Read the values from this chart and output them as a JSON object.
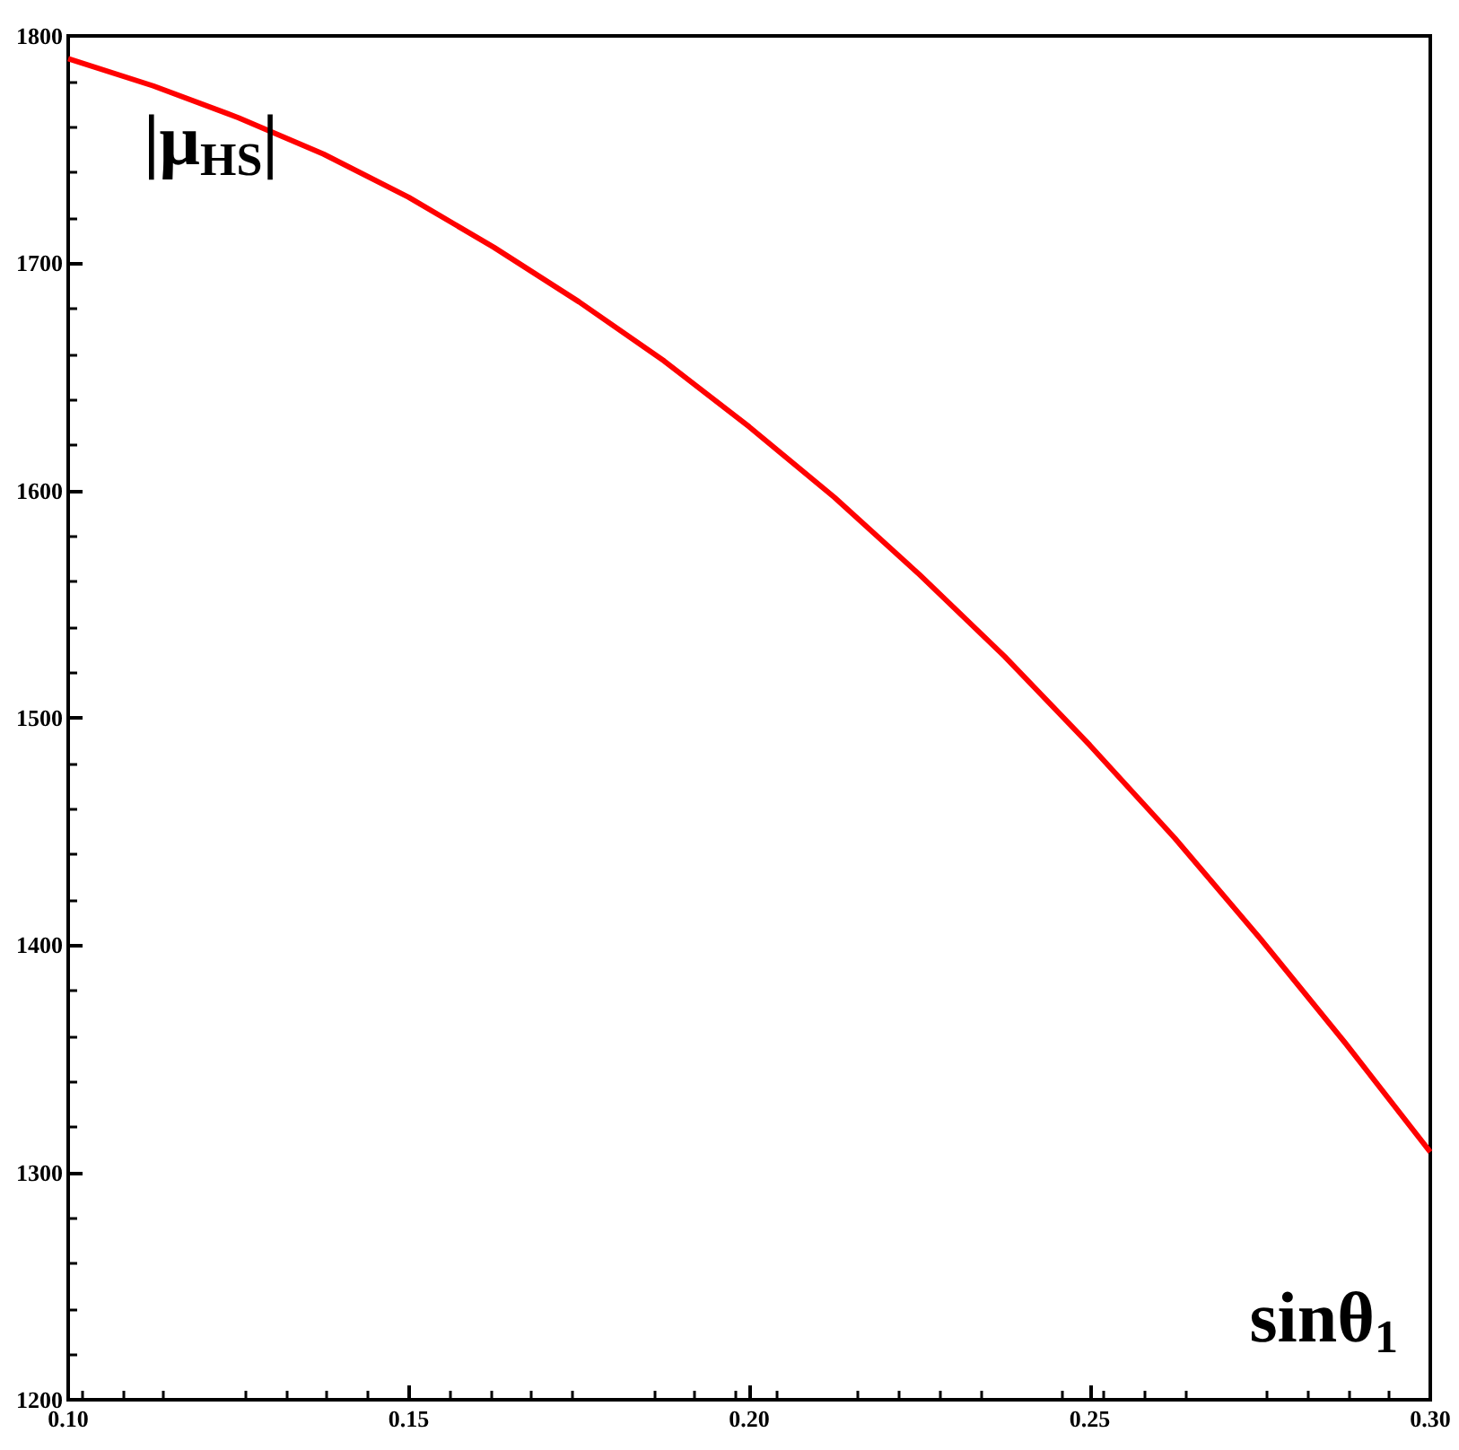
{
  "chart_data": {
    "type": "line",
    "xlabel": "sinθ$_{1}$",
    "ylabel": "|μ$_{HS}$|",
    "x": [
      0.1,
      0.1125,
      0.125,
      0.1375,
      0.15,
      0.1625,
      0.175,
      0.1875,
      0.2,
      0.2125,
      0.225,
      0.2375,
      0.25,
      0.2625,
      0.275,
      0.2875,
      0.3
    ],
    "series": [
      {
        "color": "#ff0000",
        "values": [
          1790,
          1778,
          1764,
          1748,
          1729,
          1707,
          1683,
          1657,
          1628,
          1597,
          1563,
          1527,
          1488,
          1447,
          1403,
          1357,
          1309
        ]
      }
    ],
    "xlim": [
      0.1,
      0.3
    ],
    "xticks": [
      {
        "value": 0.1,
        "label": "0.10"
      },
      0.15,
      {
        "value": 0.2,
        "label": "0.20"
      },
      0.25,
      {
        "value": 0.3,
        "label": "0.30"
      }
    ],
    "ylim": [
      1200,
      1800
    ],
    "yticks": [
      1200,
      1300,
      1400,
      1500,
      1600,
      1700,
      1800
    ],
    "grid": false,
    "marker": "none",
    "line_style": "solid"
  }
}
